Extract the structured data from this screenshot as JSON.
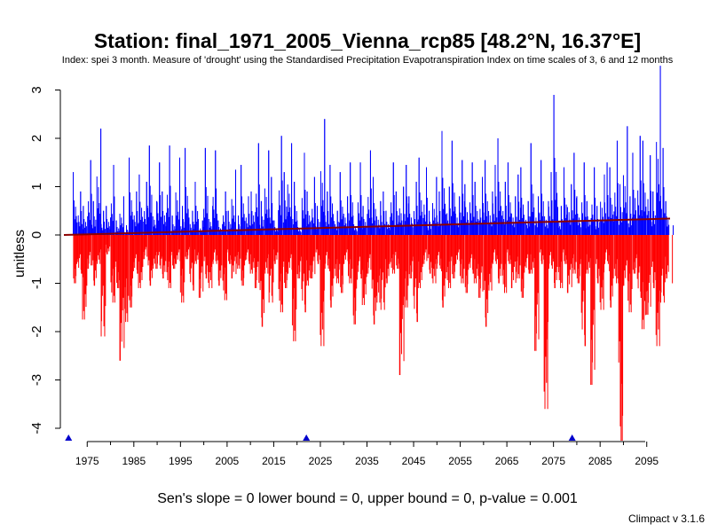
{
  "chart_data": {
    "type": "bar",
    "title": "Station: final_1971_2005_Vienna_rcp85 [48.2°N, 16.37°E]",
    "subtitle": "Index: spei 3 month. Measure of 'drought' using the Standardised Precipitation Evapotranspiration Index on time scales of 3, 6 and 12 months",
    "xlabel": "",
    "ylabel": "unitless",
    "xlim": [
      1970,
      2100
    ],
    "ylim": [
      -4,
      3.5
    ],
    "x_ticks": [
      1975,
      1985,
      1995,
      2005,
      2015,
      2025,
      2035,
      2045,
      2055,
      2065,
      2075,
      2085,
      2095
    ],
    "y_ticks": [
      -4,
      -3,
      -2,
      -1,
      0,
      1,
      2,
      3
    ],
    "positive_color": "#0000ff",
    "negative_color": "#ff0000",
    "trend_color": "#8b0000",
    "missing_marker_color": "#0000cc",
    "trend_line": {
      "x": [
        1970,
        2100
      ],
      "y": [
        0.0,
        0.34
      ]
    },
    "missing_data_years": [
      1971,
      2022,
      2079
    ],
    "series": [
      {
        "x": [
          1972,
          1973,
          1974,
          1975,
          1976,
          1977,
          1978,
          1979,
          1980,
          1981,
          1982,
          1983,
          1984,
          1985,
          1986,
          1987,
          1988,
          1989,
          1990,
          1991,
          1992,
          1993,
          1994,
          1995,
          1996,
          1997,
          1998,
          1999,
          2000,
          2001,
          2002,
          2003,
          2004,
          2005,
          2006,
          2007,
          2008,
          2009,
          2010,
          2011,
          2012,
          2013,
          2014,
          2015,
          2016,
          2017,
          2018,
          2019,
          2020,
          2021,
          2022,
          2023,
          2024,
          2025,
          2026,
          2027,
          2028,
          2029,
          2030,
          2031,
          2032,
          2033,
          2034,
          2035,
          2036,
          2037,
          2038,
          2039,
          2040,
          2041,
          2042,
          2043,
          2044,
          2045,
          2046,
          2047,
          2048,
          2049,
          2050,
          2051,
          2052,
          2053,
          2054,
          2055,
          2056,
          2057,
          2058,
          2059,
          2060,
          2061,
          2062,
          2063,
          2064,
          2065,
          2066,
          2067,
          2068,
          2069,
          2070,
          2071,
          2072,
          2073,
          2074,
          2075,
          2076,
          2077,
          2078,
          2079,
          2080,
          2081,
          2082,
          2083,
          2084,
          2085,
          2086,
          2087,
          2088,
          2089,
          2090,
          2091,
          2092,
          2093,
          2094,
          2095,
          2096,
          2097,
          2098,
          2099,
          2100
        ],
        "max": [
          1.3,
          0.9,
          0.6,
          1.55,
          0.7,
          2.2,
          0.5,
          0.6,
          1.45,
          0.3,
          0.8,
          0.2,
          1.6,
          0.9,
          1.25,
          1.1,
          1.85,
          0.7,
          1.5,
          0.9,
          1.85,
          0.4,
          1.6,
          0.6,
          1.8,
          0.5,
          1.1,
          0.3,
          1.8,
          0.6,
          1.75,
          0.3,
          0.9,
          0.5,
          1.35,
          0.4,
          1.45,
          0.8,
          0.9,
          1.9,
          0.7,
          1.75,
          1.2,
          0.3,
          2.05,
          1.3,
          1.9,
          1.1,
          0.3,
          1.7,
          0.9,
          1.2,
          0.6,
          2.4,
          0.9,
          1.45,
          0.5,
          1.3,
          0.8,
          1.5,
          0.4,
          1.5,
          0.6,
          1.75,
          1.2,
          0.7,
          0.9,
          0.5,
          1.5,
          0.9,
          1.0,
          1.45,
          0.8,
          1.1,
          1.6,
          1.4,
          0.5,
          1.2,
          0.9,
          2.15,
          1.0,
          1.95,
          0.8,
          1.55,
          1.05,
          1.5,
          1.1,
          1.2,
          1.55,
          0.9,
          1.45,
          2.0,
          1.1,
          1.5,
          0.8,
          1.25,
          1.4,
          0.7,
          1.9,
          0.8,
          1.55,
          0.7,
          1.3,
          2.9,
          0.6,
          1.4,
          1.05,
          1.7,
          0.8,
          1.5,
          0.7,
          1.4,
          0.6,
          1.25,
          1.5,
          1.4,
          1.95,
          1.05,
          2.25,
          0.8,
          1.7,
          2.05,
          1.95,
          1.65,
          0.9,
          3.5,
          1.8,
          0.7,
          0.2
        ],
        "min": [
          -1.0,
          -0.8,
          -1.75,
          -0.7,
          -1.05,
          -0.6,
          -2.1,
          -0.4,
          -1.4,
          -1.1,
          -2.6,
          -1.8,
          -1.5,
          -0.8,
          -1.1,
          -0.5,
          -1.05,
          -0.7,
          -0.7,
          -0.9,
          -1.1,
          -0.7,
          -0.6,
          -1.4,
          -0.5,
          -1.15,
          -0.6,
          -1.3,
          -0.9,
          -1.1,
          -0.6,
          -1.05,
          -1.35,
          -0.6,
          -0.9,
          -0.7,
          -1.05,
          -0.6,
          -0.8,
          -1.1,
          -1.9,
          -0.8,
          -1.4,
          -0.6,
          -1.6,
          -1.1,
          -0.8,
          -2.2,
          -0.9,
          -1.6,
          -1.05,
          -0.9,
          -0.6,
          -2.3,
          -0.7,
          -1.5,
          -1.0,
          -1.2,
          -0.6,
          -1.0,
          -1.85,
          -0.9,
          -1.45,
          -0.8,
          -1.85,
          -1.4,
          -1.55,
          -1.0,
          -0.8,
          -0.7,
          -2.9,
          -1.5,
          -0.9,
          -1.8,
          -1.1,
          -0.6,
          -0.8,
          -1.0,
          -0.7,
          -1.5,
          -1.1,
          -0.9,
          -0.6,
          -1.0,
          -1.2,
          -0.8,
          -1.0,
          -1.3,
          -1.9,
          -1.15,
          -0.6,
          -1.0,
          -1.2,
          -0.6,
          -1.1,
          -0.9,
          -1.3,
          -0.8,
          -0.8,
          -2.4,
          -0.6,
          -3.6,
          -0.7,
          -1.1,
          -1.1,
          -0.6,
          -1.2,
          -0.8,
          -1.0,
          -2.3,
          -0.8,
          -3.1,
          -1.0,
          -1.55,
          -0.6,
          -1.5,
          -1.0,
          -4.4,
          -1.05,
          -1.6,
          -0.8,
          -1.3,
          -1.95,
          -1.65,
          -1.1,
          -2.3,
          -1.4,
          -0.9,
          -1.0,
          -0.6,
          -1.1
        ]
      }
    ]
  },
  "footer": {
    "stats": "Sen's slope = 0   lower bound = 0,   upper bound = 0,   p-value = 0.001",
    "version": "Climpact v 3.1.6"
  }
}
